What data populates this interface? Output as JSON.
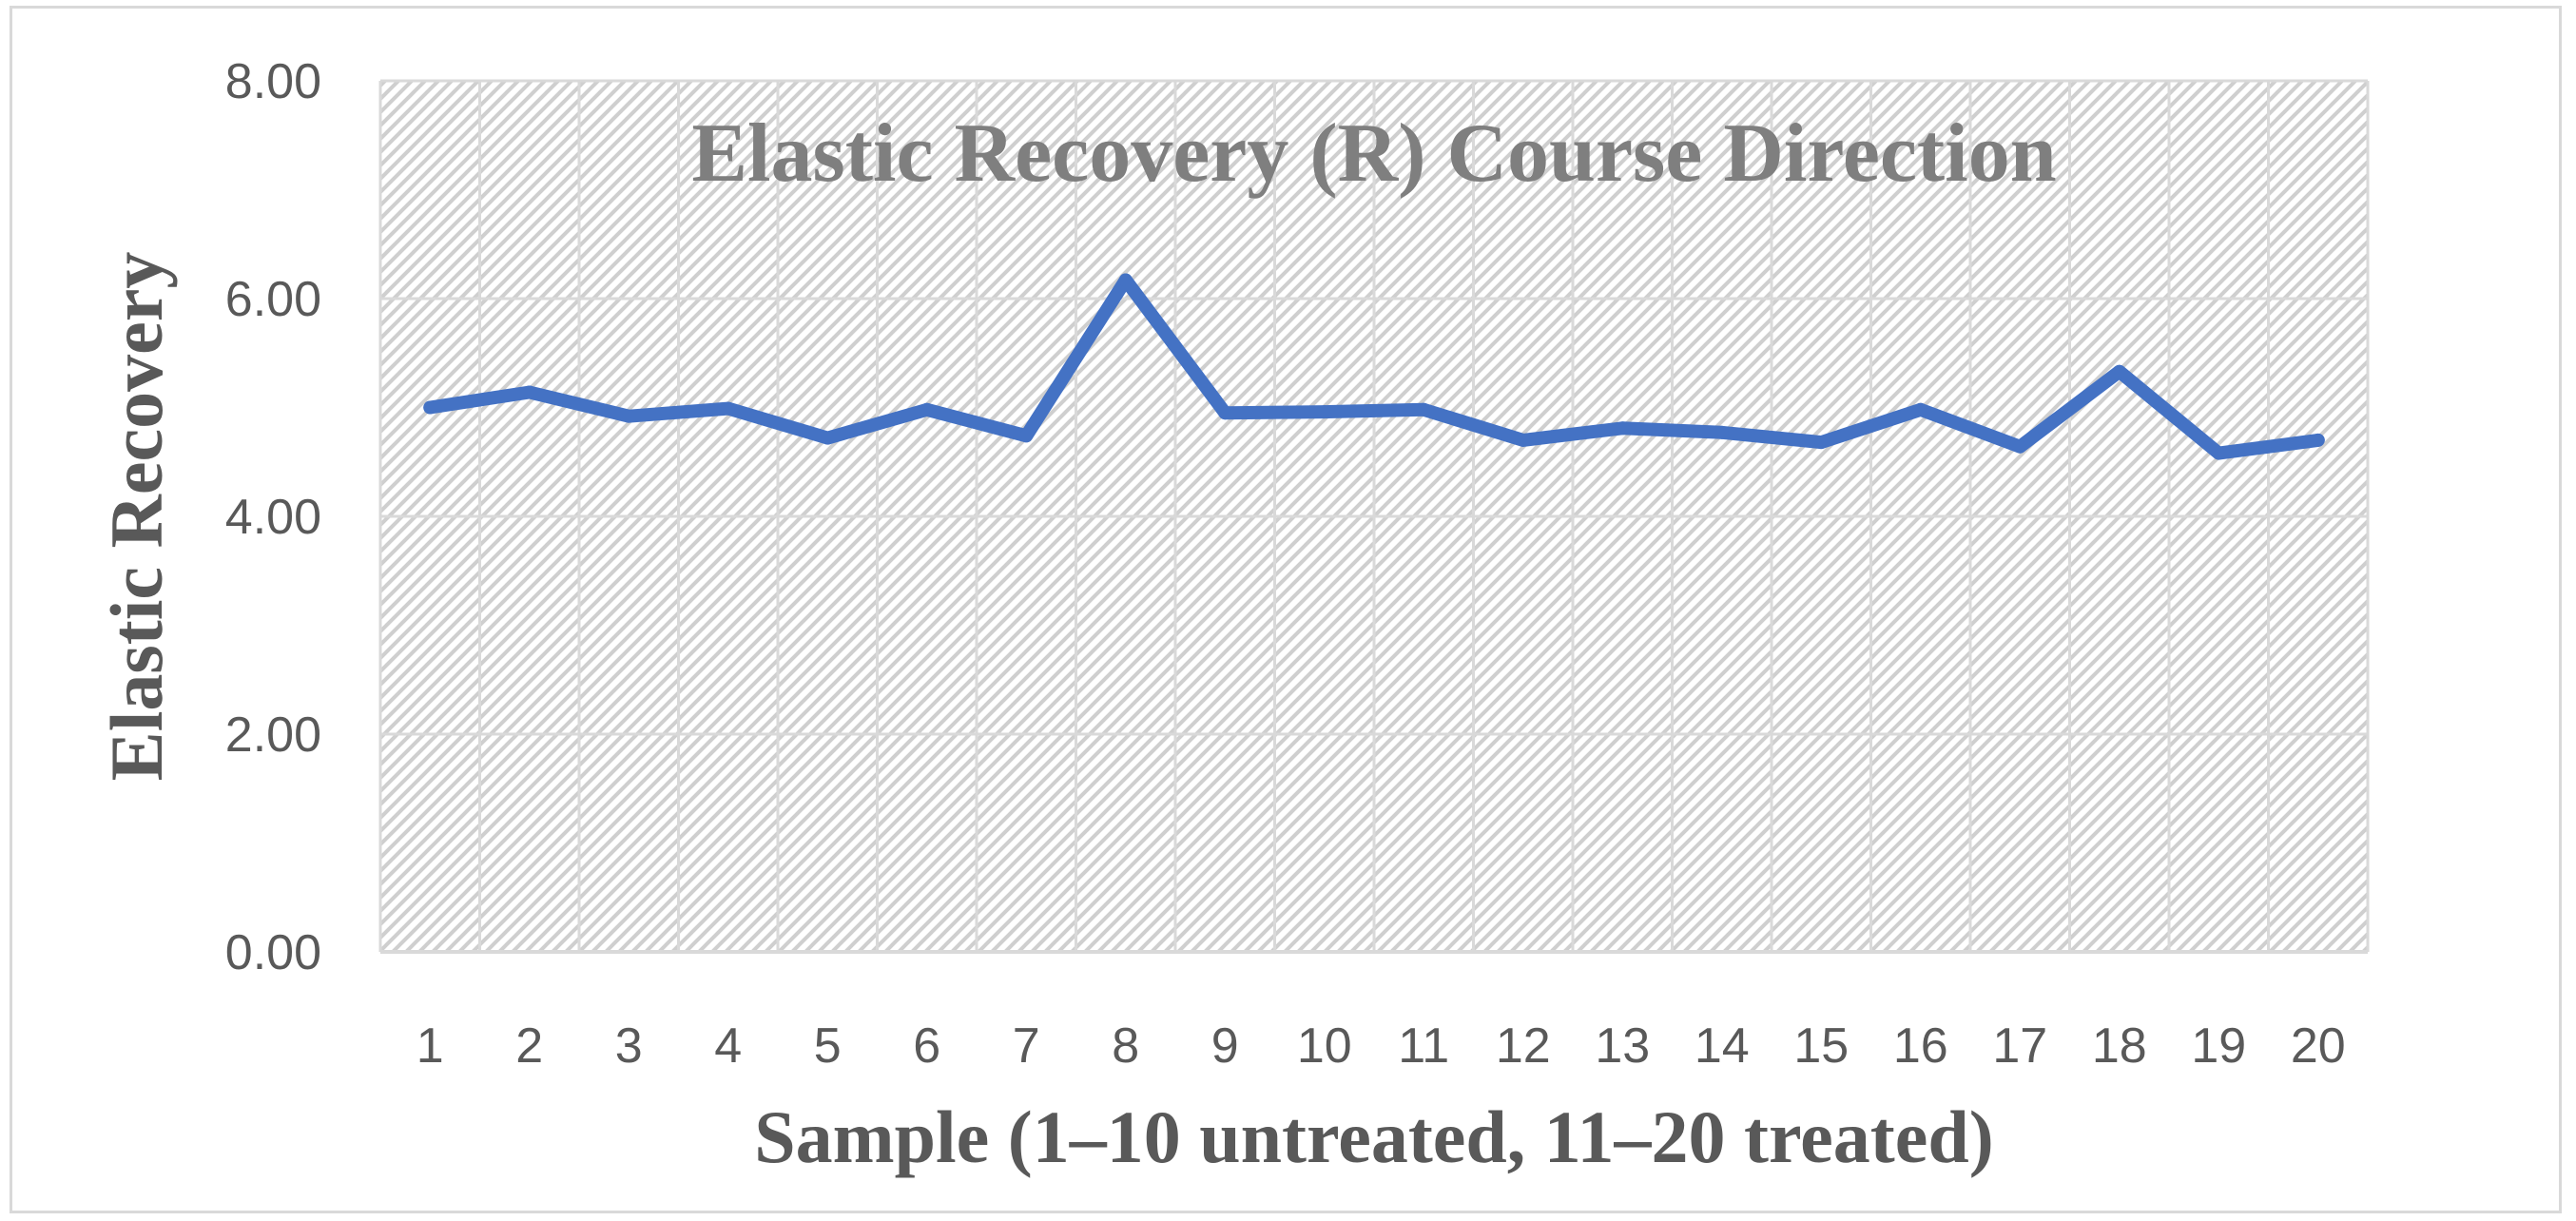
{
  "chart_data": {
    "type": "line",
    "title": "Elastic Recovery (R) Course Direction",
    "xlabel": "Sample (1–10 untreated, 11–20 treated)",
    "ylabel": "Elastic Recovery",
    "categories": [
      "1",
      "2",
      "3",
      "4",
      "5",
      "6",
      "7",
      "8",
      "9",
      "10",
      "11",
      "12",
      "13",
      "14",
      "15",
      "16",
      "17",
      "18",
      "19",
      "20"
    ],
    "series": [
      {
        "values": [
          5.0,
          5.14,
          4.92,
          4.99,
          4.72,
          4.98,
          4.74,
          6.17,
          4.95,
          4.96,
          4.98,
          4.7,
          4.81,
          4.77,
          4.68,
          4.98,
          4.64,
          5.33,
          4.58,
          4.7
        ]
      }
    ],
    "y_ticks": [
      "0.00",
      "2.00",
      "4.00",
      "6.00",
      "8.00"
    ],
    "ylim": [
      0,
      8
    ],
    "grid": true,
    "legend": "none",
    "colors": {
      "line": "#4472c4",
      "grid": "#d9d9d9",
      "hatch": "#d4d4d4"
    }
  }
}
